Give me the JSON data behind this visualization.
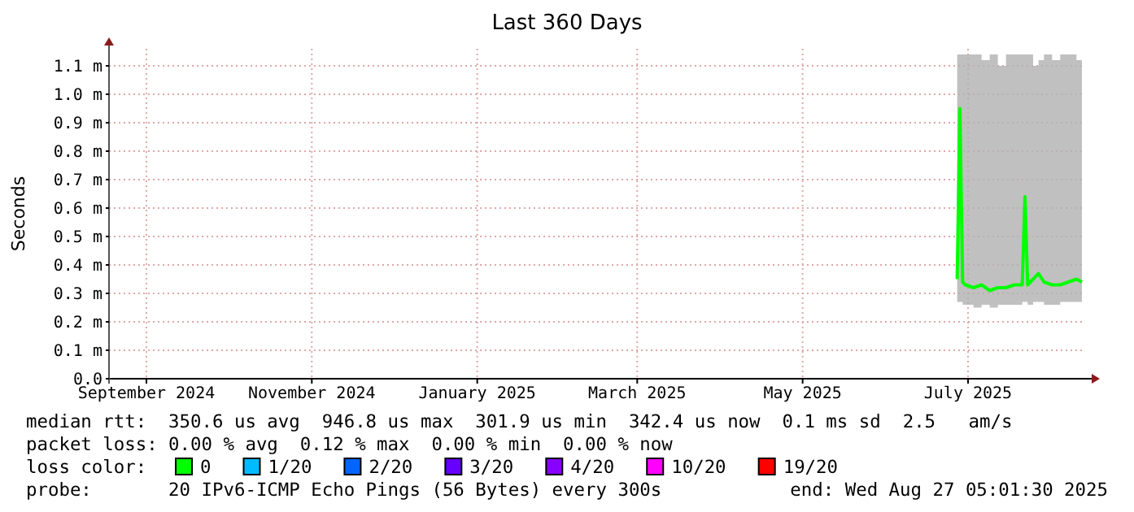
{
  "chart_data": {
    "type": "line",
    "title": "Last 360 Days",
    "ylabel": "Seconds",
    "xlim": [
      "2024-09-01T05:01",
      "2025-08-27T05:01"
    ],
    "xticks": [
      {
        "value": "2024-09-15",
        "label": "September 2024"
      },
      {
        "value": "2024-11-15",
        "label": "November 2024"
      },
      {
        "value": "2025-01-15",
        "label": "January 2025"
      },
      {
        "value": "2025-03-15",
        "label": "March 2025"
      },
      {
        "value": "2025-05-15",
        "label": "May 2025"
      },
      {
        "value": "2025-07-15",
        "label": "July 2025"
      }
    ],
    "ylim": [
      0,
      1.16
    ],
    "yticks": [
      {
        "value": 0,
        "label": "0.0"
      },
      {
        "value": 0.1,
        "label": "0.1 m"
      },
      {
        "value": 0.2,
        "label": "0.2 m"
      },
      {
        "value": 0.3,
        "label": "0.3 m"
      },
      {
        "value": 0.4,
        "label": "0.4 m"
      },
      {
        "value": 0.5,
        "label": "0.5 m"
      },
      {
        "value": 0.6,
        "label": "0.6 m"
      },
      {
        "value": 0.7,
        "label": "0.7 m"
      },
      {
        "value": 0.8,
        "label": "0.8 m"
      },
      {
        "value": 0.9,
        "label": "0.9 m"
      },
      {
        "value": 1.0,
        "label": "1.0 m"
      },
      {
        "value": 1.1,
        "label": "1.1 m"
      }
    ],
    "grid": true,
    "marker": "none",
    "line_style": "solid",
    "x": [
      "2025-07-11",
      "2025-07-12",
      "2025-07-13",
      "2025-07-14",
      "2025-07-17",
      "2025-07-20",
      "2025-07-23",
      "2025-07-26",
      "2025-07-29",
      "2025-08-01",
      "2025-08-04",
      "2025-08-05",
      "2025-08-06",
      "2025-08-08",
      "2025-08-10",
      "2025-08-12",
      "2025-08-15",
      "2025-08-18",
      "2025-08-21",
      "2025-08-24",
      "2025-08-26"
    ],
    "series": [
      {
        "color": "#00ff00",
        "values": [
          0.35,
          0.95,
          0.34,
          0.33,
          0.32,
          0.33,
          0.31,
          0.32,
          0.32,
          0.33,
          0.33,
          0.64,
          0.33,
          0.35,
          0.37,
          0.34,
          0.33,
          0.33,
          0.34,
          0.35,
          0.34
        ],
        "lower": [
          0.27,
          0.27,
          0.26,
          0.26,
          0.25,
          0.26,
          0.25,
          0.26,
          0.26,
          0.26,
          0.27,
          0.27,
          0.26,
          0.27,
          0.27,
          0.26,
          0.26,
          0.27,
          0.27,
          0.27,
          0.27
        ],
        "upper": [
          1.14,
          1.14,
          1.14,
          1.14,
          1.14,
          1.12,
          1.14,
          1.1,
          1.14,
          1.14,
          1.14,
          1.14,
          1.14,
          1.1,
          1.12,
          1.14,
          1.12,
          1.14,
          1.14,
          1.12,
          1.14
        ]
      }
    ],
    "annotations": [
      "median rtt:  350.6 us avg  946.8 us max  301.9 us min  342.4 us now  0.1 ms sd  2.5   am/s",
      "packet loss: 0.00 % avg  0.12 % max  0.00 % min  0.00 % now",
      "loss color:",
      "0",
      "1/20",
      "2/20",
      "3/20",
      "4/20",
      "10/20",
      "19/20",
      "probe:       20 IPv6-ICMP Echo Pings (56 Bytes) every 300s",
      "end: Wed Aug 27 05:01:30 2025"
    ]
  }
}
